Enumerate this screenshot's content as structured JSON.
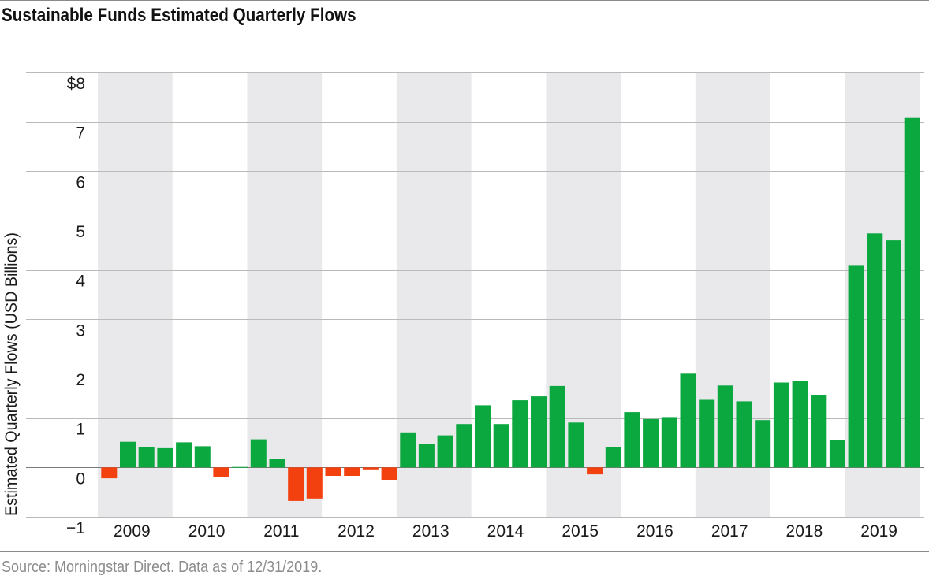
{
  "colors": {
    "positive": "#0aa83f",
    "negative": "#f2400f",
    "band": "#e9e9eb",
    "grid": "#b9b9b9",
    "text": "#1a1a1a"
  },
  "chart_data": {
    "type": "bar",
    "title": "Sustainable Funds Estimated Quarterly Flows",
    "ylabel": "Estimated Quarterly Flows (USD Billions)",
    "xlabel": "",
    "source": "Source: Morningstar Direct. Data as of 12/31/2019.",
    "ylim": [
      -1,
      8
    ],
    "y_ticks": [
      {
        "value": 8,
        "label": "$8"
      },
      {
        "value": 7,
        "label": "7"
      },
      {
        "value": 6,
        "label": "6"
      },
      {
        "value": 5,
        "label": "5"
      },
      {
        "value": 4,
        "label": "4"
      },
      {
        "value": 3,
        "label": "3"
      },
      {
        "value": 2,
        "label": "2"
      },
      {
        "value": 1,
        "label": "1"
      },
      {
        "value": 0,
        "label": "0"
      },
      {
        "value": -1,
        "label": "−1"
      }
    ],
    "years": [
      "2009",
      "2010",
      "2011",
      "2012",
      "2013",
      "2014",
      "2015",
      "2016",
      "2017",
      "2018",
      "2019"
    ],
    "quarters_per_year": 4,
    "values": [
      -0.22,
      0.52,
      0.41,
      0.39,
      0.51,
      0.43,
      -0.19,
      0.01,
      0.57,
      0.17,
      -0.68,
      -0.63,
      -0.17,
      -0.17,
      -0.04,
      -0.25,
      0.71,
      0.47,
      0.65,
      0.88,
      1.26,
      0.88,
      1.36,
      1.44,
      1.65,
      0.91,
      -0.14,
      0.42,
      1.12,
      0.98,
      1.02,
      1.9,
      1.37,
      1.66,
      1.34,
      0.96,
      1.72,
      1.76,
      1.47,
      0.56,
      4.1,
      4.74,
      4.6,
      7.08
    ],
    "grid": true,
    "legend": "none"
  }
}
